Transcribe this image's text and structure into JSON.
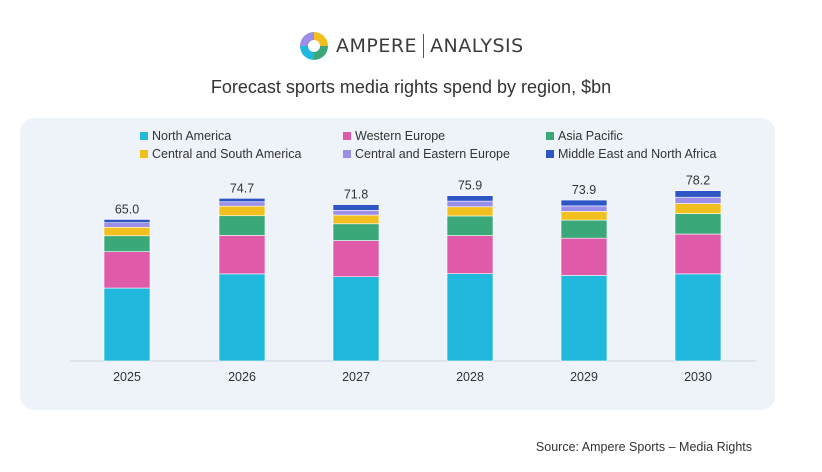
{
  "brand": {
    "name": "AMPERE",
    "sub": "ANALYSIS"
  },
  "title": "Forecast sports media rights spend by region, $bn",
  "source": "Source: Ampere Sports – Media Rights",
  "colors": {
    "North America": "#20b8dc",
    "Western Europe": "#e05aaa",
    "Asia Pacific": "#3aa878",
    "Central and South America": "#f2c01e",
    "Central and Eastern Europe": "#9b8ee8",
    "Middle East and North Africa": "#2d55c4"
  },
  "chart_data": {
    "type": "bar",
    "stacked": true,
    "title": "Forecast sports media rights spend by region, $bn",
    "categories": [
      "2025",
      "2026",
      "2027",
      "2028",
      "2029",
      "2030"
    ],
    "series": [
      {
        "name": "North America",
        "values": [
          33.5,
          40.0,
          38.7,
          40.1,
          39.3,
          40.0
        ]
      },
      {
        "name": "Western Europe",
        "values": [
          16.7,
          17.7,
          16.6,
          17.5,
          17.1,
          18.3
        ]
      },
      {
        "name": "Asia Pacific",
        "values": [
          7.3,
          9.0,
          7.7,
          9.0,
          8.3,
          9.4
        ]
      },
      {
        "name": "Central and South America",
        "values": [
          3.9,
          4.4,
          4.0,
          4.2,
          4.0,
          4.6
        ]
      },
      {
        "name": "Central and Eastern Europe",
        "values": [
          2.1,
          2.0,
          2.2,
          2.6,
          2.5,
          2.9
        ]
      },
      {
        "name": "Middle East and North Africa",
        "values": [
          1.5,
          1.6,
          2.6,
          2.5,
          2.7,
          3.0
        ]
      }
    ],
    "totals": [
      "65.0",
      "74.7",
      "71.8",
      "75.9",
      "73.9",
      "78.2"
    ],
    "legend_position": "top",
    "ylim": [
      0,
      80
    ],
    "grid": false
  }
}
